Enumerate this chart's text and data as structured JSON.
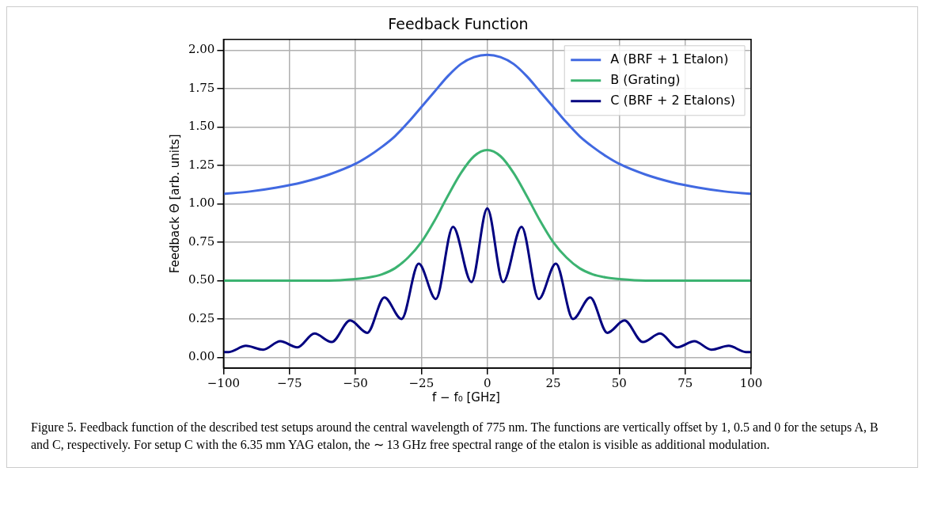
{
  "chart_data": {
    "type": "line",
    "title": "Feedback Function",
    "xlabel": "f − f₀ [GHz]",
    "ylabel": "Feedback Θ [arb. units]",
    "xlim": [
      -100,
      100
    ],
    "xticks": [
      {
        "value": -100,
        "label": "−100"
      },
      {
        "value": -75,
        "label": "−75"
      },
      {
        "value": -50,
        "label": "−50"
      },
      {
        "value": -25,
        "label": "−25"
      },
      0,
      25,
      50,
      75,
      100
    ],
    "ylim": [
      -0.07,
      2.07
    ],
    "yticks": [
      {
        "value": 0,
        "label": "0.00"
      },
      {
        "value": 0.25,
        "label": "0.25"
      },
      {
        "value": 0.5,
        "label": "0.50"
      },
      {
        "value": 0.75,
        "label": "0.75"
      },
      {
        "value": 1,
        "label": "1.00"
      },
      {
        "value": 1.25,
        "label": "1.25"
      },
      {
        "value": 1.5,
        "label": "1.50"
      },
      {
        "value": 1.75,
        "label": "1.75"
      },
      {
        "value": 2,
        "label": "2.00"
      }
    ],
    "grid": true,
    "legend": "top right",
    "marker": "none",
    "line_style": "solid",
    "series": [
      {
        "name": "A (BRF + 1 Etalon)",
        "color": "#4169e1",
        "x": [
          -100,
          -90,
          -80,
          -70,
          -60,
          -50,
          -45,
          -40,
          -35,
          -30,
          -25,
          -20,
          -15,
          -10,
          -5,
          0,
          5,
          10,
          15,
          20,
          25,
          30,
          35,
          40,
          45,
          50,
          60,
          70,
          80,
          90,
          100
        ],
        "values": [
          1.065,
          1.08,
          1.105,
          1.14,
          1.19,
          1.26,
          1.31,
          1.37,
          1.44,
          1.53,
          1.63,
          1.73,
          1.83,
          1.91,
          1.955,
          1.97,
          1.955,
          1.91,
          1.83,
          1.73,
          1.63,
          1.53,
          1.44,
          1.37,
          1.31,
          1.26,
          1.19,
          1.14,
          1.105,
          1.08,
          1.065
        ]
      },
      {
        "name": "B (Grating)",
        "color": "#3cb371",
        "x": [
          -100,
          -60,
          -50,
          -45,
          -40,
          -35,
          -30,
          -25,
          -20,
          -15,
          -10,
          -5,
          0,
          5,
          10,
          15,
          20,
          25,
          30,
          35,
          40,
          45,
          50,
          60,
          100
        ],
        "values": [
          0.5,
          0.5,
          0.51,
          0.52,
          0.54,
          0.58,
          0.65,
          0.75,
          0.89,
          1.05,
          1.2,
          1.31,
          1.35,
          1.31,
          1.2,
          1.05,
          0.89,
          0.75,
          0.65,
          0.58,
          0.54,
          0.52,
          0.51,
          0.5,
          0.5
        ]
      },
      {
        "name": "C (BRF + 2 Etalons)",
        "color": "#000080",
        "x": [
          -100,
          -98,
          -91.5,
          -85,
          -78.5,
          -72,
          -65.5,
          -59,
          -52,
          -45.5,
          -39,
          -32.5,
          -26,
          -19.5,
          -13,
          -6,
          0,
          6,
          13,
          19.5,
          26,
          32.5,
          39,
          45.5,
          52,
          59,
          65.5,
          72,
          78.5,
          85,
          91.5,
          98,
          100
        ],
        "values": [
          0.035,
          0.035,
          0.075,
          0.05,
          0.105,
          0.065,
          0.155,
          0.1,
          0.24,
          0.16,
          0.39,
          0.25,
          0.61,
          0.38,
          0.85,
          0.49,
          0.97,
          0.49,
          0.85,
          0.38,
          0.61,
          0.25,
          0.39,
          0.16,
          0.24,
          0.1,
          0.155,
          0.065,
          0.105,
          0.05,
          0.075,
          0.035,
          0.035
        ]
      }
    ],
    "annotations": [
      "Figure 5. Feedback function of the described test setups around the central wavelength of 775 nm. The functions are vertically offset by 1, 0.5 and 0 for the setups A, B and C, respectively. For setup C with the 6.35 mm YAG etalon, the ∼ 13 GHz free spectral range of the etalon is visible as additional modulation."
    ]
  }
}
